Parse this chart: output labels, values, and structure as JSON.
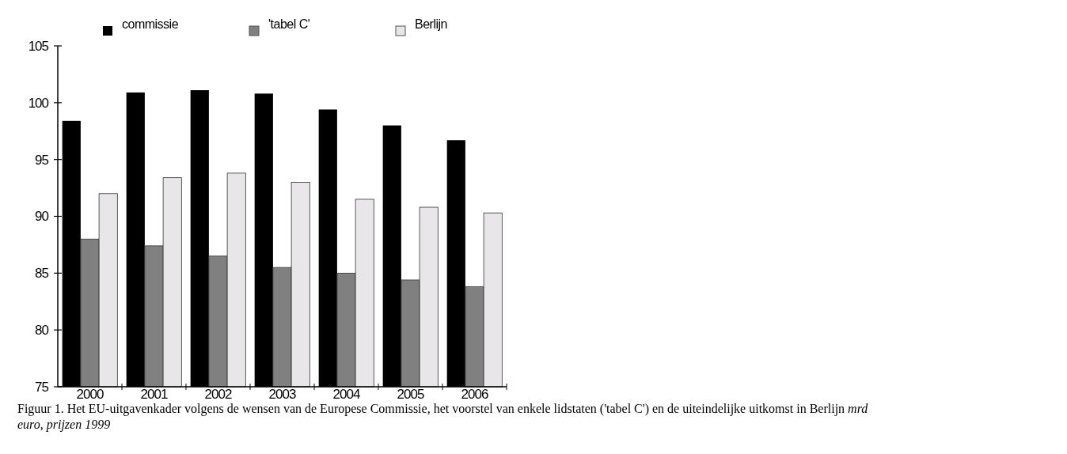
{
  "chart_data": {
    "type": "bar",
    "categories": [
      "2000",
      "2001",
      "2002",
      "2003",
      "2004",
      "2005",
      "2006"
    ],
    "series": [
      {
        "name": "commissie",
        "color": "#000000",
        "values": [
          98.4,
          100.9,
          101.1,
          100.8,
          99.4,
          98.0,
          96.7
        ]
      },
      {
        "name": "'tabel C'",
        "color": "#808080",
        "values": [
          88.0,
          87.4,
          86.5,
          85.5,
          85.0,
          84.4,
          83.8
        ]
      },
      {
        "name": "Berlijn",
        "color": "#e8e6e8",
        "values": [
          92.0,
          93.4,
          93.8,
          93.0,
          91.5,
          90.8,
          90.3
        ]
      }
    ],
    "ylim": [
      75,
      105
    ],
    "yticks": [
      75,
      80,
      85,
      90,
      95,
      100,
      105
    ],
    "grid": false,
    "legend": "top",
    "annotations": [
      "Figuur 1. Het EU-uitgavenkader volgens de wensen van de Europese Commissie, het voorstel van enkele lidstaten ('tabel C') en de uiteindelijke uitkomst in Berlijn",
      "mrd euro, prijzen 1999"
    ]
  }
}
